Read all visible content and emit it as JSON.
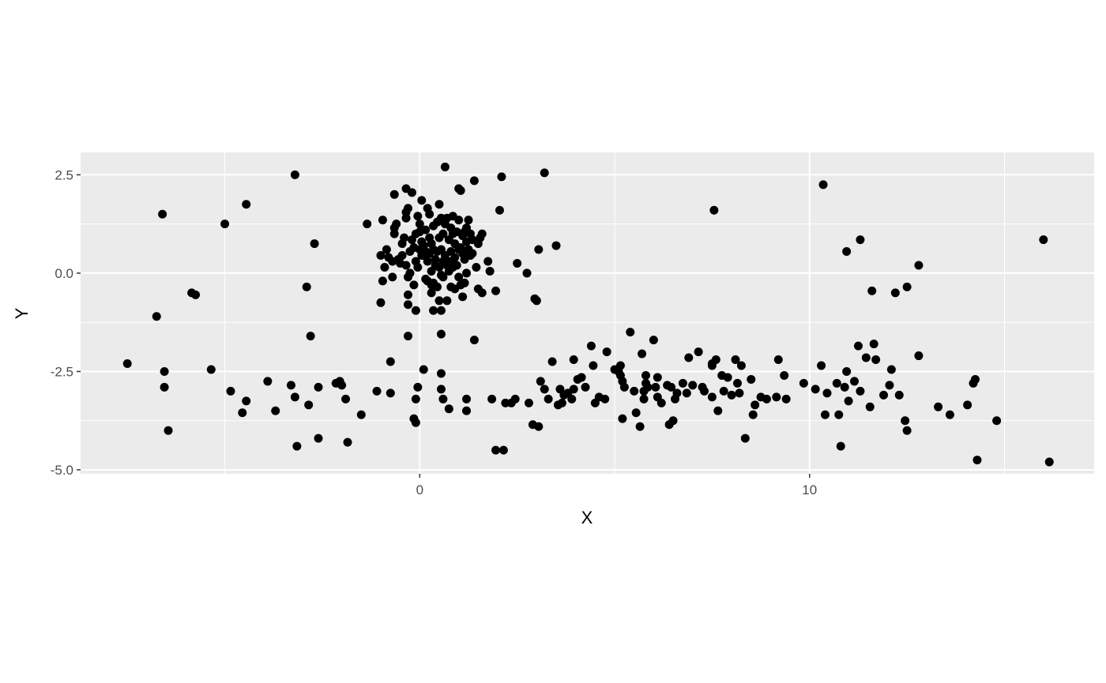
{
  "chart_data": {
    "type": "scatter",
    "title": "",
    "xlabel": "X",
    "ylabel": "Y",
    "xlim": [
      -8.7,
      17.3
    ],
    "ylim": [
      -5.1,
      3.07
    ],
    "x_ticks": [
      {
        "value": 0,
        "label": "0"
      },
      {
        "value": 10,
        "label": "10"
      }
    ],
    "x_minor": [
      -5,
      5,
      15
    ],
    "y_ticks": [
      {
        "value": 2.5,
        "label": "2.5"
      },
      {
        "value": 0.0,
        "label": "0.0"
      },
      {
        "value": -2.5,
        "label": "-2.5"
      },
      {
        "value": -5.0,
        "label": "-5.0"
      }
    ],
    "y_minor": [
      1.25,
      -1.25,
      -3.75
    ],
    "grid": true,
    "legend": "none",
    "colors": {
      "panel": "#ebebeb",
      "grid": "#ffffff",
      "point": "#000000"
    },
    "points": [
      [
        -7.5,
        -2.3
      ],
      [
        -6.75,
        -1.1
      ],
      [
        -6.6,
        1.5
      ],
      [
        -6.55,
        -2.5
      ],
      [
        -6.55,
        -2.9
      ],
      [
        -6.45,
        -4.0
      ],
      [
        -5.85,
        -0.5
      ],
      [
        -5.75,
        -0.55
      ],
      [
        -5.35,
        -2.45
      ],
      [
        -5.0,
        1.25
      ],
      [
        -4.85,
        -3.0
      ],
      [
        -4.55,
        -3.55
      ],
      [
        -4.45,
        1.75
      ],
      [
        -4.45,
        -3.25
      ],
      [
        -3.9,
        -2.75
      ],
      [
        -3.7,
        -3.5
      ],
      [
        -3.3,
        -2.85
      ],
      [
        -3.2,
        2.5
      ],
      [
        -3.2,
        -3.15
      ],
      [
        -3.15,
        -4.4
      ],
      [
        -2.9,
        -0.35
      ],
      [
        -2.85,
        -3.35
      ],
      [
        -2.8,
        -1.6
      ],
      [
        -2.7,
        0.75
      ],
      [
        -2.6,
        -2.9
      ],
      [
        -2.6,
        -4.2
      ],
      [
        -2.15,
        -2.8
      ],
      [
        -2.05,
        -2.75
      ],
      [
        -2.0,
        -2.85
      ],
      [
        -1.9,
        -3.2
      ],
      [
        -1.85,
        -4.3
      ],
      [
        -1.5,
        -3.6
      ],
      [
        -1.35,
        1.25
      ],
      [
        -1.1,
        -3.0
      ],
      [
        -1.0,
        0.45
      ],
      [
        -1.0,
        -0.75
      ],
      [
        -0.95,
        1.35
      ],
      [
        -0.95,
        -0.2
      ],
      [
        -0.9,
        0.15
      ],
      [
        -0.85,
        0.6
      ],
      [
        -0.8,
        0.4
      ],
      [
        -0.75,
        -2.25
      ],
      [
        -0.75,
        -3.05
      ],
      [
        -0.7,
        0.3
      ],
      [
        -0.7,
        -0.1
      ],
      [
        -0.65,
        1.15
      ],
      [
        -0.65,
        1.0
      ],
      [
        -0.65,
        2.0
      ],
      [
        -0.6,
        1.25
      ],
      [
        -0.55,
        0.35
      ],
      [
        -0.5,
        0.25
      ],
      [
        -0.45,
        0.75
      ],
      [
        -0.45,
        0.45
      ],
      [
        -0.4,
        0.9
      ],
      [
        -0.35,
        1.4
      ],
      [
        -0.35,
        1.55
      ],
      [
        -0.35,
        0.2
      ],
      [
        -0.35,
        2.15
      ],
      [
        -0.3,
        -0.1
      ],
      [
        -0.3,
        -0.55
      ],
      [
        -0.3,
        -0.8
      ],
      [
        -0.3,
        -1.6
      ],
      [
        -0.3,
        1.65
      ],
      [
        -0.25,
        0.0
      ],
      [
        -0.25,
        0.55
      ],
      [
        -0.2,
        0.85
      ],
      [
        -0.2,
        2.05
      ],
      [
        -0.15,
        0.65
      ],
      [
        -0.15,
        -0.3
      ],
      [
        -0.15,
        -3.7
      ],
      [
        -0.1,
        1.0
      ],
      [
        -0.1,
        0.3
      ],
      [
        -0.1,
        -0.95
      ],
      [
        -0.1,
        -3.8
      ],
      [
        -0.1,
        -3.2
      ],
      [
        -0.05,
        1.45
      ],
      [
        -0.05,
        0.15
      ],
      [
        -0.05,
        -2.9
      ],
      [
        0.0,
        1.25
      ],
      [
        0.0,
        1.05
      ],
      [
        0.0,
        0.6
      ],
      [
        0.05,
        0.45
      ],
      [
        0.05,
        0.8
      ],
      [
        0.05,
        1.85
      ],
      [
        0.1,
        0.7
      ],
      [
        0.1,
        0.45
      ],
      [
        0.1,
        -2.45
      ],
      [
        0.15,
        1.1
      ],
      [
        0.15,
        0.55
      ],
      [
        0.15,
        -0.15
      ],
      [
        0.2,
        1.65
      ],
      [
        0.2,
        0.3
      ],
      [
        0.2,
        -0.2
      ],
      [
        0.25,
        1.5
      ],
      [
        0.25,
        0.9
      ],
      [
        0.25,
        0.5
      ],
      [
        0.3,
        0.75
      ],
      [
        0.3,
        0.05
      ],
      [
        0.3,
        -0.3
      ],
      [
        0.3,
        -0.5
      ],
      [
        0.35,
        1.2
      ],
      [
        0.35,
        0.6
      ],
      [
        0.35,
        -0.25
      ],
      [
        0.35,
        -0.95
      ],
      [
        0.4,
        0.35
      ],
      [
        0.4,
        0.2
      ],
      [
        0.45,
        1.3
      ],
      [
        0.45,
        0.55
      ],
      [
        0.45,
        -0.35
      ],
      [
        0.5,
        1.75
      ],
      [
        0.5,
        0.9
      ],
      [
        0.5,
        0.15
      ],
      [
        0.5,
        -0.7
      ],
      [
        0.55,
        1.4
      ],
      [
        0.55,
        0.6
      ],
      [
        0.55,
        -0.05
      ],
      [
        0.55,
        -0.95
      ],
      [
        0.55,
        -1.55
      ],
      [
        0.55,
        -2.95
      ],
      [
        0.55,
        -2.55
      ],
      [
        0.6,
        1.0
      ],
      [
        0.6,
        0.3
      ],
      [
        0.6,
        -0.1
      ],
      [
        0.6,
        -3.2
      ],
      [
        0.65,
        2.7
      ],
      [
        0.65,
        1.25
      ],
      [
        0.65,
        0.45
      ],
      [
        0.7,
        1.4
      ],
      [
        0.7,
        0.2
      ],
      [
        0.7,
        -0.7
      ],
      [
        0.75,
        0.85
      ],
      [
        0.75,
        0.05
      ],
      [
        0.75,
        -3.45
      ],
      [
        0.8,
        1.15
      ],
      [
        0.8,
        0.55
      ],
      [
        0.8,
        0.3
      ],
      [
        0.8,
        -0.35
      ],
      [
        0.85,
        1.45
      ],
      [
        0.85,
        1.0
      ],
      [
        0.85,
        0.15
      ],
      [
        0.9,
        0.75
      ],
      [
        0.9,
        0.4
      ],
      [
        0.9,
        -0.4
      ],
      [
        0.95,
        1.05
      ],
      [
        0.95,
        0.2
      ],
      [
        1.0,
        2.15
      ],
      [
        1.0,
        1.35
      ],
      [
        1.0,
        0.6
      ],
      [
        1.0,
        -0.1
      ],
      [
        1.05,
        2.1
      ],
      [
        1.05,
        0.65
      ],
      [
        1.05,
        -0.3
      ],
      [
        1.1,
        0.95
      ],
      [
        1.1,
        0.5
      ],
      [
        1.1,
        -0.6
      ],
      [
        1.15,
        1.05
      ],
      [
        1.15,
        0.35
      ],
      [
        1.15,
        -0.25
      ],
      [
        1.2,
        1.15
      ],
      [
        1.2,
        0.8
      ],
      [
        1.2,
        0.0
      ],
      [
        1.2,
        -3.2
      ],
      [
        1.2,
        -3.5
      ],
      [
        1.25,
        1.35
      ],
      [
        1.25,
        0.6
      ],
      [
        1.3,
        0.45
      ],
      [
        1.3,
        1.0
      ],
      [
        1.35,
        0.85
      ],
      [
        1.35,
        0.5
      ],
      [
        1.4,
        2.35
      ],
      [
        1.4,
        -1.7
      ],
      [
        1.45,
        0.15
      ],
      [
        1.5,
        0.75
      ],
      [
        1.5,
        -0.4
      ],
      [
        1.55,
        0.9
      ],
      [
        1.6,
        -0.5
      ],
      [
        1.6,
        1.0
      ],
      [
        1.75,
        0.3
      ],
      [
        1.8,
        0.05
      ],
      [
        1.85,
        -3.2
      ],
      [
        1.95,
        -0.45
      ],
      [
        1.95,
        -4.5
      ],
      [
        2.05,
        1.6
      ],
      [
        2.1,
        2.45
      ],
      [
        2.15,
        -4.5
      ],
      [
        2.2,
        -3.3
      ],
      [
        2.35,
        -3.3
      ],
      [
        2.45,
        -3.2
      ],
      [
        2.5,
        0.25
      ],
      [
        2.75,
        0.0
      ],
      [
        2.8,
        -3.3
      ],
      [
        2.9,
        -3.85
      ],
      [
        2.95,
        -0.65
      ],
      [
        3.0,
        -0.7
      ],
      [
        3.05,
        0.6
      ],
      [
        3.05,
        -3.9
      ],
      [
        3.1,
        -2.75
      ],
      [
        3.2,
        2.55
      ],
      [
        3.2,
        -2.95
      ],
      [
        3.3,
        -3.2
      ],
      [
        3.4,
        -2.25
      ],
      [
        3.5,
        0.7
      ],
      [
        3.55,
        -3.35
      ],
      [
        3.6,
        -2.95
      ],
      [
        3.65,
        -3.3
      ],
      [
        3.7,
        -3.1
      ],
      [
        3.8,
        -3.05
      ],
      [
        3.9,
        -3.2
      ],
      [
        3.95,
        -2.2
      ],
      [
        3.95,
        -2.95
      ],
      [
        4.05,
        -2.7
      ],
      [
        4.15,
        -2.65
      ],
      [
        4.25,
        -2.9
      ],
      [
        4.4,
        -1.85
      ],
      [
        4.45,
        -2.35
      ],
      [
        4.5,
        -3.3
      ],
      [
        4.6,
        -3.15
      ],
      [
        4.75,
        -3.2
      ],
      [
        4.8,
        -2.0
      ],
      [
        5.0,
        -2.45
      ],
      [
        5.1,
        -2.5
      ],
      [
        5.15,
        -2.35
      ],
      [
        5.15,
        -2.6
      ],
      [
        5.2,
        -2.75
      ],
      [
        5.2,
        -3.7
      ],
      [
        5.25,
        -2.9
      ],
      [
        5.4,
        -1.5
      ],
      [
        5.5,
        -3.0
      ],
      [
        5.55,
        -3.55
      ],
      [
        5.65,
        -3.9
      ],
      [
        5.7,
        -2.05
      ],
      [
        5.75,
        -3.2
      ],
      [
        5.75,
        -3.0
      ],
      [
        5.8,
        -2.6
      ],
      [
        5.8,
        -2.8
      ],
      [
        5.85,
        -2.9
      ],
      [
        6.0,
        -1.7
      ],
      [
        6.05,
        -2.9
      ],
      [
        6.1,
        -2.65
      ],
      [
        6.1,
        -3.15
      ],
      [
        6.2,
        -3.3
      ],
      [
        6.35,
        -2.85
      ],
      [
        6.4,
        -3.85
      ],
      [
        6.45,
        -2.9
      ],
      [
        6.5,
        -3.75
      ],
      [
        6.55,
        -3.2
      ],
      [
        6.6,
        -3.05
      ],
      [
        6.75,
        -2.8
      ],
      [
        6.85,
        -3.05
      ],
      [
        6.9,
        -2.15
      ],
      [
        7.0,
        -2.85
      ],
      [
        7.15,
        -2.0
      ],
      [
        7.25,
        -2.9
      ],
      [
        7.3,
        -3.0
      ],
      [
        7.5,
        -3.15
      ],
      [
        7.5,
        -2.3
      ],
      [
        7.5,
        -2.35
      ],
      [
        7.55,
        1.6
      ],
      [
        7.6,
        -2.2
      ],
      [
        7.65,
        -3.5
      ],
      [
        7.75,
        -2.6
      ],
      [
        7.8,
        -3.0
      ],
      [
        7.9,
        -2.65
      ],
      [
        8.0,
        -3.1
      ],
      [
        8.1,
        -2.2
      ],
      [
        8.15,
        -2.8
      ],
      [
        8.2,
        -3.05
      ],
      [
        8.25,
        -2.35
      ],
      [
        8.35,
        -4.2
      ],
      [
        8.5,
        -2.7
      ],
      [
        8.55,
        -3.6
      ],
      [
        8.6,
        -3.35
      ],
      [
        8.75,
        -3.15
      ],
      [
        8.9,
        -3.2
      ],
      [
        9.15,
        -3.15
      ],
      [
        9.2,
        -2.2
      ],
      [
        9.35,
        -2.6
      ],
      [
        9.4,
        -3.2
      ],
      [
        9.85,
        -2.8
      ],
      [
        10.15,
        -2.95
      ],
      [
        10.3,
        -2.35
      ],
      [
        10.35,
        2.25
      ],
      [
        10.4,
        -3.6
      ],
      [
        10.45,
        -3.05
      ],
      [
        10.7,
        -2.8
      ],
      [
        10.75,
        -3.6
      ],
      [
        10.8,
        -4.4
      ],
      [
        10.9,
        -2.9
      ],
      [
        10.95,
        -2.5
      ],
      [
        10.95,
        0.55
      ],
      [
        11.0,
        -3.25
      ],
      [
        11.15,
        -2.75
      ],
      [
        11.25,
        -1.85
      ],
      [
        11.3,
        -3.0
      ],
      [
        11.3,
        0.85
      ],
      [
        11.45,
        -2.15
      ],
      [
        11.55,
        -3.4
      ],
      [
        11.6,
        -0.45
      ],
      [
        11.65,
        -1.8
      ],
      [
        11.7,
        -2.2
      ],
      [
        11.9,
        -3.1
      ],
      [
        12.05,
        -2.85
      ],
      [
        12.1,
        -2.45
      ],
      [
        12.2,
        -0.5
      ],
      [
        12.3,
        -3.1
      ],
      [
        12.45,
        -3.75
      ],
      [
        12.5,
        -4.0
      ],
      [
        12.5,
        -0.35
      ],
      [
        12.8,
        -2.1
      ],
      [
        12.8,
        0.2
      ],
      [
        13.3,
        -3.4
      ],
      [
        13.6,
        -3.6
      ],
      [
        14.05,
        -3.35
      ],
      [
        14.2,
        -2.8
      ],
      [
        14.25,
        -2.7
      ],
      [
        14.3,
        -4.75
      ],
      [
        14.8,
        -3.75
      ],
      [
        16.0,
        0.85
      ],
      [
        16.15,
        -4.8
      ]
    ]
  }
}
